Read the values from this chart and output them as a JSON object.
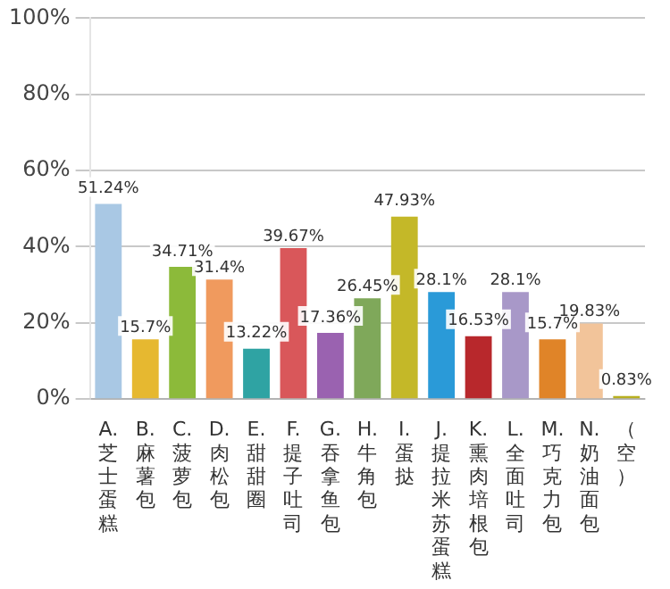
{
  "chart_data": {
    "type": "bar",
    "categories": [
      "A.芝士蛋糕",
      "B.麻薯包",
      "C.菠萝包",
      "D.肉松包",
      "E.甜甜圈",
      "F.提子吐司",
      "G.吞拿鱼包",
      "H.牛角包",
      "I.蛋挞",
      "J.提拉米苏蛋糕",
      "K.熏肉培根包",
      "L.全面吐司",
      "M.巧克力包",
      "N.奶油面包",
      "（空）"
    ],
    "values": [
      51.24,
      15.7,
      34.71,
      31.4,
      13.22,
      39.67,
      17.36,
      26.45,
      47.93,
      28.1,
      16.53,
      28.1,
      15.7,
      19.83,
      0.83
    ],
    "value_labels": [
      "51.24%",
      "15.7%",
      "34.71%",
      "31.4%",
      "13.22%",
      "39.67%",
      "17.36%",
      "26.45%",
      "47.93%",
      "28.1%",
      "16.53%",
      "28.1%",
      "15.7%",
      "19.83%",
      "0.83%"
    ],
    "colors": [
      "#a9c8e4",
      "#e6b830",
      "#8cba3a",
      "#f09a5e",
      "#2fa3a3",
      "#d9575a",
      "#9a62b0",
      "#7fa85a",
      "#c4b828",
      "#2a9ad8",
      "#b8282c",
      "#a898c8",
      "#e08428",
      "#f2c49a",
      "#b8b020"
    ],
    "ylim": [
      0,
      100
    ],
    "yticks": [
      {
        "value": 0,
        "label": "0%"
      },
      {
        "value": 20,
        "label": "20%"
      },
      {
        "value": 40,
        "label": "40%"
      },
      {
        "value": 60,
        "label": "60%"
      },
      {
        "value": 80,
        "label": "80%"
      },
      {
        "value": 100,
        "label": "100%"
      }
    ],
    "grid": "y",
    "legend": false
  }
}
